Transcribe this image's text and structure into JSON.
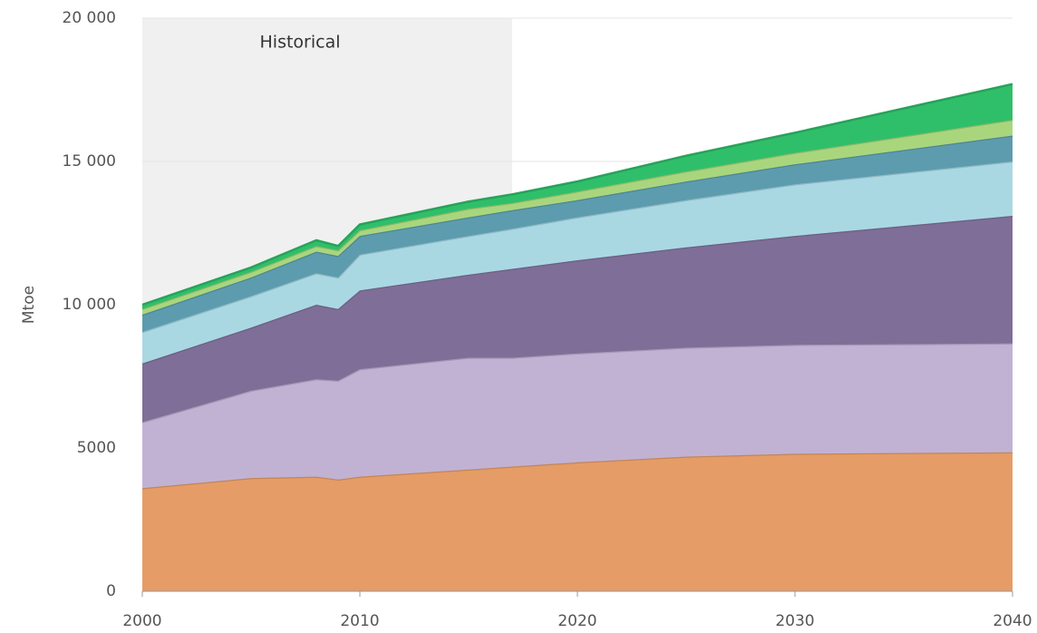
{
  "chart_data": {
    "type": "stacked-area",
    "y_label": "Mtoe",
    "annotation": "Historical",
    "shaded_region": [
      2000,
      2017
    ],
    "x": [
      2000,
      2005,
      2008,
      2009,
      2010,
      2015,
      2017,
      2020,
      2025,
      2030,
      2040
    ],
    "xlim": [
      2000,
      2040
    ],
    "xticks": [
      2000,
      2010,
      2020,
      2030,
      2040
    ],
    "ylim": [
      0,
      20000
    ],
    "yticks": [
      0,
      5000,
      {
        "value": 10000,
        "label": "10 000"
      },
      {
        "value": 15000,
        "label": "15 000"
      },
      {
        "value": 20000,
        "label": "20 000"
      }
    ],
    "grid": true,
    "series": [
      {
        "color": "#e59c66",
        "values": [
          3600,
          3950,
          4000,
          3900,
          4000,
          4250,
          4350,
          4500,
          4700,
          4800,
          4850
        ]
      },
      {
        "color": "#c1b2d4",
        "values": [
          2300,
          3050,
          3400,
          3450,
          3750,
          3900,
          3800,
          3800,
          3800,
          3800,
          3800
        ]
      },
      {
        "color": "#7f6e97",
        "values": [
          2050,
          2200,
          2600,
          2500,
          2750,
          2900,
          3100,
          3250,
          3500,
          3800,
          4450
        ]
      },
      {
        "color": "#a9d8e3",
        "values": [
          1100,
          1100,
          1100,
          1100,
          1250,
          1350,
          1400,
          1500,
          1650,
          1800,
          1900
        ]
      },
      {
        "color": "#5c9cae",
        "values": [
          600,
          650,
          750,
          750,
          650,
          650,
          650,
          600,
          650,
          700,
          900
        ]
      },
      {
        "color": "#a9d67d",
        "values": [
          200,
          200,
          200,
          200,
          200,
          300,
          250,
          300,
          350,
          400,
          550
        ]
      },
      {
        "color": "#2fbf6a",
        "values": [
          150,
          150,
          200,
          150,
          200,
          250,
          300,
          350,
          550,
          700,
          1250
        ]
      }
    ]
  }
}
